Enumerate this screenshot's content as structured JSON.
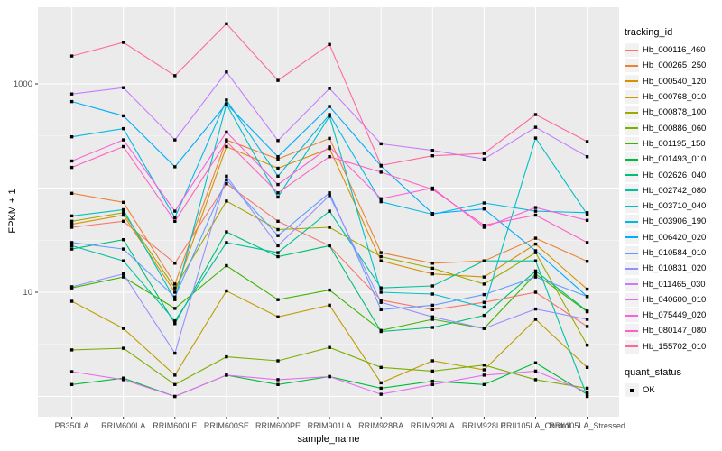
{
  "figure": {
    "panel_bg": "#EBEBEB",
    "gridline_color": "#FFFFFF",
    "axis_text_color": "#4D4D4D",
    "marker_color": "#000000",
    "y_axis": {
      "title": "FPKM + 1",
      "shown_tick_labels": [
        "1000",
        "10"
      ]
    },
    "x_axis": {
      "title": "sample_name"
    },
    "legend": {
      "tracking_title": "tracking_id",
      "quant_title": "quant_status",
      "quant_items": [
        {
          "label": "OK",
          "key": "black-square"
        }
      ]
    }
  },
  "chart_data": {
    "type": "line",
    "title": "",
    "xlabel": "sample_name",
    "ylabel": "FPKM + 1",
    "y_scale": "log10",
    "ylim": [
      1,
      4000
    ],
    "y_major_gridlines": [
      1,
      10,
      100,
      1000
    ],
    "y_labeled_ticks": [
      10,
      1000
    ],
    "grid": true,
    "legend_position": "right",
    "point_marker": "black-square",
    "quant_status": "OK",
    "categories": [
      "PB350LA",
      "RRIM600LA",
      "RRIM600LE",
      "RRIM600SE",
      "RRIM600PE",
      "RRIM901LA",
      "RRIM928BA",
      "RRIM928LA",
      "RRIM928LE",
      "RRII105LA_Control",
      "RRII105LA_Stressed"
    ],
    "series": [
      {
        "name": "Hb_000116_460",
        "color": "#F8766D",
        "values": [
          42,
          48,
          19,
          110,
          48,
          28,
          8.4,
          6.8,
          8,
          10,
          4.7
        ]
      },
      {
        "name": "Hb_000265_250",
        "color": "#EB8335",
        "values": [
          89,
          73,
          12,
          290,
          190,
          300,
          24,
          19,
          20,
          33,
          19.8
        ]
      },
      {
        "name": "Hb_000540_120",
        "color": "#D89000",
        "values": [
          45,
          55,
          10,
          250,
          155,
          240,
          20,
          15,
          14,
          29,
          10.7
        ]
      },
      {
        "name": "Hb_000768_010",
        "color": "#BF9C00",
        "values": [
          8.2,
          4.5,
          1.6,
          10.3,
          5.8,
          7.5,
          1.35,
          2.2,
          1.8,
          5.5,
          1.9
        ]
      },
      {
        "name": "Hb_000878_100",
        "color": "#9FA800",
        "values": [
          48,
          58,
          11,
          75,
          40,
          42,
          22,
          17,
          12,
          24,
          3.1
        ]
      },
      {
        "name": "Hb_000886_060",
        "color": "#7CAE00",
        "values": [
          2.8,
          2.9,
          1.3,
          2.4,
          2.2,
          2.95,
          1.9,
          1.75,
          2.0,
          1.45,
          1.2
        ]
      },
      {
        "name": "Hb_001195_150",
        "color": "#3FB400",
        "values": [
          11,
          14,
          7,
          18,
          8.5,
          10.5,
          4.3,
          5.5,
          4.5,
          15,
          6.5
        ]
      },
      {
        "name": "Hb_001493_010",
        "color": "#00BA38",
        "values": [
          1.3,
          1.5,
          1.0,
          1.6,
          1.3,
          1.55,
          1.2,
          1.4,
          1.3,
          2.1,
          1.05
        ]
      },
      {
        "name": "Hb_002626_040",
        "color": "#00BF74",
        "values": [
          26,
          32,
          5,
          38,
          22,
          28,
          4.2,
          4.6,
          6,
          16,
          6.6
        ]
      },
      {
        "name": "Hb_002742_080",
        "color": "#00C19F",
        "values": [
          28,
          20,
          5.3,
          30,
          24,
          60,
          11,
          11.5,
          20,
          20,
          1.0
        ]
      },
      {
        "name": "Hb_003710_040",
        "color": "#00BFC4",
        "values": [
          54,
          62,
          8.5,
          640,
          82,
          490,
          10,
          9.6,
          7.2,
          302,
          56
        ]
      },
      {
        "name": "Hb_003906_190",
        "color": "#00B9E3",
        "values": [
          310,
          372,
          52,
          700,
          130,
          508,
          74,
          56,
          72,
          60,
          58
        ]
      },
      {
        "name": "Hb_006420_020",
        "color": "#00ACFC",
        "values": [
          676,
          494,
          160,
          645,
          200,
          608,
          163,
          57,
          63,
          25,
          9.1
        ]
      },
      {
        "name": "Hb_010584_010",
        "color": "#619CFF",
        "values": [
          30,
          26,
          9,
          120,
          35,
          90,
          6.8,
          7.5,
          9.5,
          14,
          9.1
        ]
      },
      {
        "name": "Hb_010831_020",
        "color": "#9590FF",
        "values": [
          11.3,
          15,
          2.6,
          130,
          28,
          85,
          8,
          5.8,
          4.5,
          6.9,
          5.5
        ]
      },
      {
        "name": "Hb_011465_030",
        "color": "#C77CFF",
        "values": [
          800,
          920,
          290,
          1300,
          286,
          905,
          266,
          230,
          190,
          383,
          200
        ]
      },
      {
        "name": "Hb_040600_010",
        "color": "#E76BF3",
        "values": [
          1.73,
          1.45,
          1.0,
          1.6,
          1.45,
          1.55,
          1.05,
          1.3,
          1.6,
          1.75,
          1.1
        ]
      },
      {
        "name": "Hb_075449_020",
        "color": "#FA61DB",
        "values": [
          182,
          290,
          60,
          345,
          108,
          248,
          79,
          100,
          42,
          65,
          49
        ]
      },
      {
        "name": "Hb_080147_080",
        "color": "#FF61C3",
        "values": [
          158,
          250,
          48,
          280,
          90,
          200,
          142,
          97,
          44,
          55,
          30
        ]
      },
      {
        "name": "Hb_155702_010",
        "color": "#FF689F",
        "values": [
          1850,
          2500,
          1200,
          3780,
          1080,
          2390,
          165,
          204,
          215,
          508,
          279
        ]
      }
    ]
  }
}
